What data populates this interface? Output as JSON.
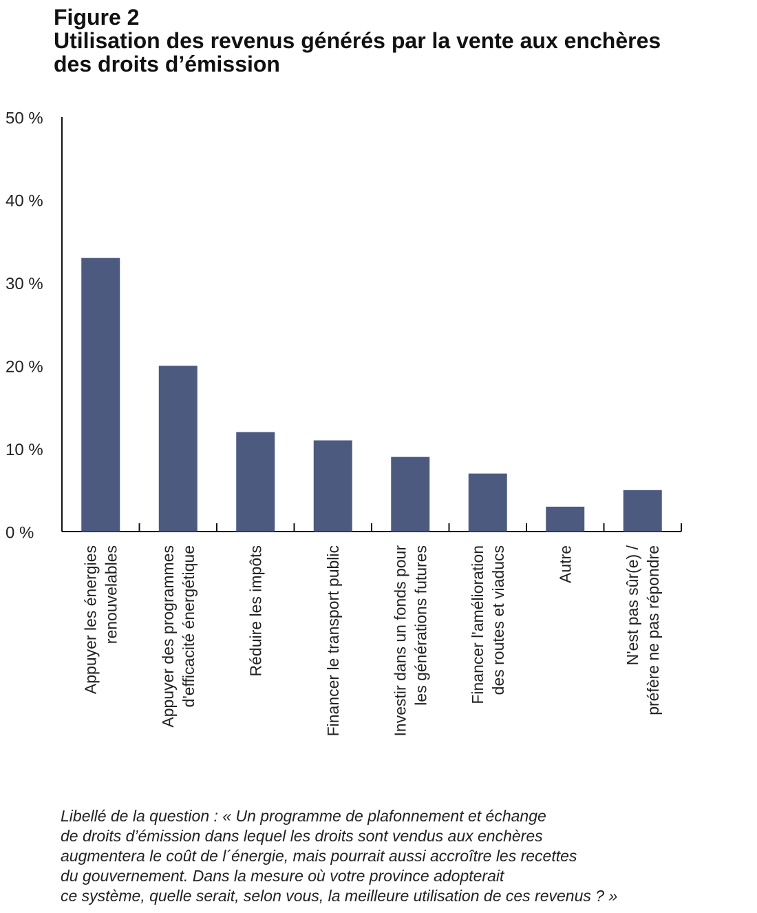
{
  "figure": {
    "label": "Figure 2",
    "title_lines": [
      "Utilisation des revenus générés par la vente aux enchères",
      "des droits d’émission"
    ]
  },
  "chart_data": {
    "type": "bar",
    "categories": [
      [
        "Appuyer les énergies",
        "renouvelables"
      ],
      [
        "Appuyer des programmes",
        "d'efficacité énergétique"
      ],
      [
        "Réduire les impôts"
      ],
      [
        "Financer le transport public"
      ],
      [
        "Investir dans un fonds pour",
        "les générations futures"
      ],
      [
        "Financer l'amélioration",
        "des routes et viaducs"
      ],
      [
        "Autre"
      ],
      [
        "N'est pas sûr(e) /",
        "préfère ne pas répondre"
      ]
    ],
    "values": [
      33,
      20,
      12,
      11,
      9,
      7,
      3,
      5
    ],
    "ylim": [
      0,
      50
    ],
    "yticks": [
      "0 %",
      "10 %",
      "20 %",
      "30 %",
      "40 %",
      "50 %"
    ],
    "bar_color": "#4c5a80",
    "axis_color": "#111111",
    "grid": false
  },
  "caption_lines": [
    "Libellé de la question : « Un programme de plafonnement et échange",
    "de droits d’émission dans lequel les droits sont vendus aux enchères",
    "augmentera le coût de l´énergie, mais pourrait aussi accroître les recettes",
    "du gouvernement. Dans la mesure où votre province adopterait",
    "ce système, quelle serait, selon vous, la meilleure utilisation de ces revenus ? »"
  ]
}
